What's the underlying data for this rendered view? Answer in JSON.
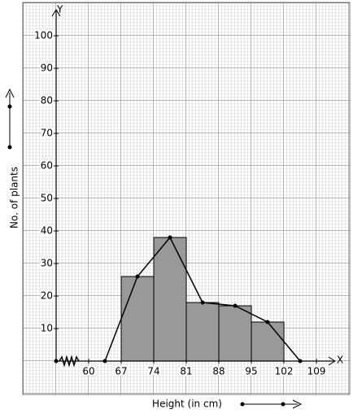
{
  "chart_data": {
    "type": "histogram",
    "x_label": "Height (in cm)",
    "y_label": "No. of plants",
    "x_axis_letter": "X",
    "y_axis_letter": "Y",
    "bins": [
      67,
      74,
      81,
      88,
      95,
      102
    ],
    "values": [
      26,
      38,
      18,
      17,
      12
    ],
    "color": "#999999",
    "polygon": {
      "x": [
        63.5,
        70.5,
        77.5,
        84.5,
        91.5,
        98.5,
        105.5
      ],
      "values": [
        0,
        26,
        38,
        18,
        17,
        12,
        0
      ],
      "color": "#000000"
    },
    "xlim": [
      53,
      113
    ],
    "ylim": [
      0,
      108
    ],
    "xticks": [
      60,
      67,
      74,
      81,
      88,
      95,
      102,
      109
    ],
    "yticks": [
      10,
      20,
      30,
      40,
      50,
      60,
      70,
      80,
      90,
      100
    ],
    "grid": true
  }
}
